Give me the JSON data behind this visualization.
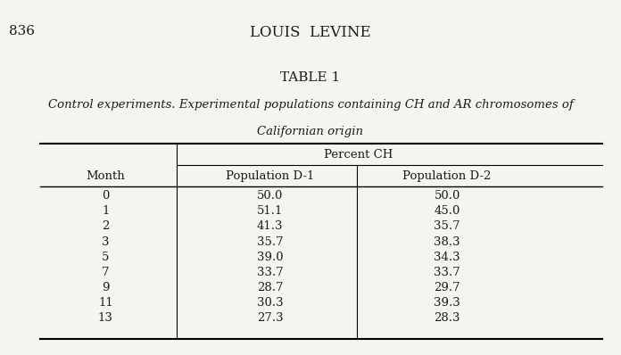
{
  "page_number": "836",
  "header": "LOUIS  LEVINE",
  "table_title": "TABLE 1",
  "table_subtitle_line1": "Control experiments. Experimental populations containing CH and AR chromosomes of",
  "table_subtitle_line2": "Californian origin",
  "col_header_main": "Percent CH",
  "col_header_left": "Month",
  "col_header_d1": "Population D-1",
  "col_header_d2": "Population D-2",
  "months": [
    0,
    1,
    2,
    3,
    5,
    7,
    9,
    11,
    13
  ],
  "pop_d1": [
    50.0,
    51.1,
    41.3,
    35.7,
    39.0,
    33.7,
    28.7,
    30.3,
    27.3
  ],
  "pop_d2": [
    50.0,
    45.0,
    35.7,
    38.3,
    34.3,
    33.7,
    29.7,
    39.3,
    28.3
  ],
  "bg_color": "#f5f5f0",
  "text_color": "#1a1a1a"
}
